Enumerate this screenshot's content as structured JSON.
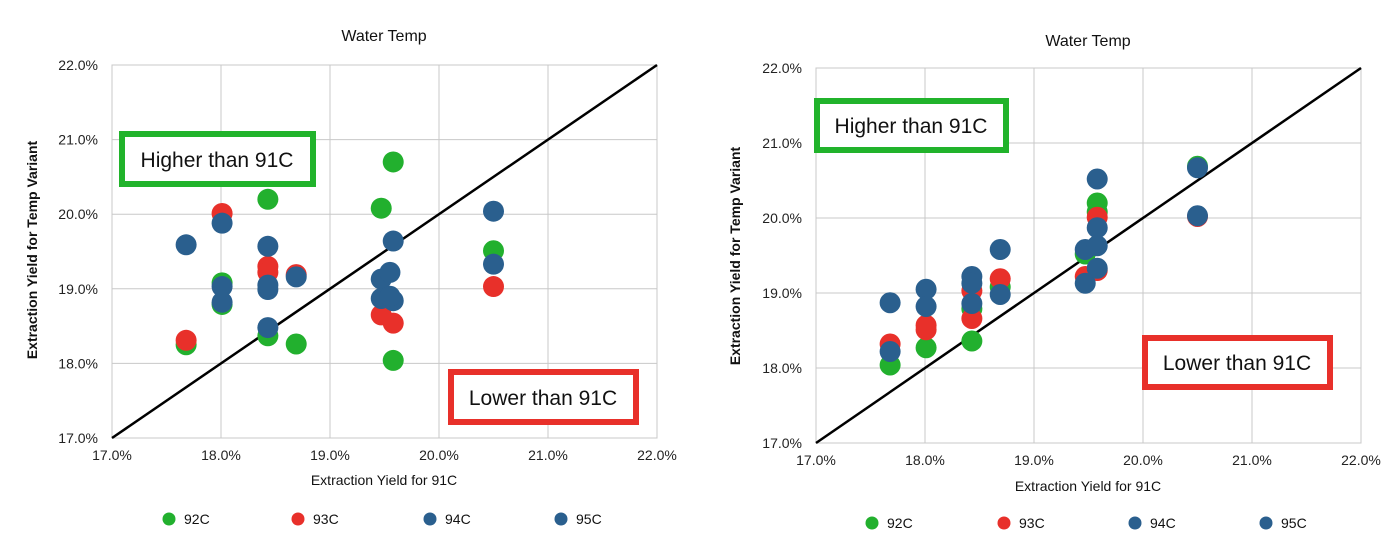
{
  "colors": {
    "92C": "#22b02e",
    "93C": "#e8302a",
    "94C": "#2a5f8e",
    "95C": "#2a5f8e",
    "higher_box": "#21b32b",
    "lower_box": "#e8302a",
    "grid": "#c8c8c8",
    "diagonal": "#000000"
  },
  "chart_data": [
    {
      "type": "scatter",
      "title": "Water Temp",
      "xlabel": "Extraction Yield for 91C",
      "ylabel": "Extraction Yield for Temp  Variant",
      "xlim": [
        17.0,
        22.0
      ],
      "ylim": [
        17.0,
        22.0
      ],
      "xticks": [
        17,
        18,
        19,
        20,
        21,
        22
      ],
      "yticks": [
        17,
        18,
        19,
        20,
        21,
        22
      ],
      "x_tick_labels": [
        "17.0%",
        "18.0%",
        "19.0%",
        "20.0%",
        "21.0%",
        "22.0%"
      ],
      "y_tick_labels": [
        "17.0%",
        "18.0%",
        "19.0%",
        "20.0%",
        "21.0%",
        "22.0%"
      ],
      "grid": true,
      "legend_position": "bottom",
      "reference_line": "y = x",
      "annotations": [
        "Higher than 91C",
        "Lower than 91C"
      ],
      "series": [
        {
          "name": "92C",
          "points": [
            [
              17.68,
              18.25
            ],
            [
              18.01,
              19.08
            ],
            [
              18.01,
              18.79
            ],
            [
              18.43,
              20.2
            ],
            [
              18.43,
              18.37
            ],
            [
              18.69,
              18.26
            ],
            [
              19.47,
              20.08
            ],
            [
              19.58,
              20.7
            ],
            [
              19.58,
              18.04
            ],
            [
              20.5,
              19.51
            ]
          ]
        },
        {
          "name": "93C",
          "points": [
            [
              17.68,
              18.31
            ],
            [
              18.01,
              20.01
            ],
            [
              18.43,
              19.3
            ],
            [
              18.43,
              19.22
            ],
            [
              18.69,
              19.19
            ],
            [
              19.47,
              18.65
            ],
            [
              19.58,
              18.54
            ],
            [
              20.5,
              19.03
            ]
          ]
        },
        {
          "name": "94C",
          "points": [
            [
              17.68,
              19.59
            ],
            [
              18.01,
              19.88
            ],
            [
              18.01,
              18.82
            ],
            [
              18.43,
              19.57
            ],
            [
              18.43,
              18.99
            ],
            [
              18.43,
              18.48
            ],
            [
              18.69,
              19.16
            ],
            [
              19.47,
              19.13
            ],
            [
              19.47,
              18.87
            ],
            [
              19.58,
              19.64
            ],
            [
              19.58,
              18.84
            ],
            [
              20.5,
              20.04
            ]
          ]
        },
        {
          "name": "95C",
          "points": [
            [
              18.01,
              19.03
            ],
            [
              18.43,
              19.05
            ],
            [
              19.55,
              19.22
            ],
            [
              19.55,
              18.9
            ],
            [
              20.5,
              19.33
            ]
          ]
        }
      ]
    },
    {
      "type": "scatter",
      "title": "Water Temp",
      "xlabel": "Extraction Yield for 91C",
      "ylabel": "Extraction Yield for Temp  Variant",
      "xlim": [
        17.0,
        22.0
      ],
      "ylim": [
        17.0,
        22.0
      ],
      "xticks": [
        17,
        18,
        19,
        20,
        21,
        22
      ],
      "yticks": [
        17,
        18,
        19,
        20,
        21,
        22
      ],
      "x_tick_labels": [
        "17.0%",
        "18.0%",
        "19.0%",
        "20.0%",
        "21.0%",
        "22.0%"
      ],
      "y_tick_labels": [
        "17.0%",
        "18.0%",
        "19.0%",
        "20.0%",
        "21.0%",
        "22.0%"
      ],
      "grid": true,
      "legend_position": "bottom",
      "reference_line": "y = x",
      "annotations": [
        "Higher than 91C",
        "Lower than 91C"
      ],
      "series": [
        {
          "name": "92C",
          "points": [
            [
              17.68,
              18.04
            ],
            [
              18.01,
              18.27
            ],
            [
              18.43,
              18.36
            ],
            [
              18.43,
              18.79
            ],
            [
              18.69,
              19.08
            ],
            [
              19.47,
              19.52
            ],
            [
              19.58,
              20.08
            ],
            [
              19.58,
              20.2
            ],
            [
              20.5,
              20.69
            ]
          ]
        },
        {
          "name": "93C",
          "points": [
            [
              17.68,
              18.32
            ],
            [
              18.01,
              18.51
            ],
            [
              18.01,
              18.57
            ],
            [
              18.43,
              18.66
            ],
            [
              18.43,
              19.03
            ],
            [
              18.69,
              19.19
            ],
            [
              19.47,
              19.22
            ],
            [
              19.58,
              19.3
            ],
            [
              19.58,
              20.01
            ],
            [
              20.5,
              20.02
            ]
          ]
        },
        {
          "name": "94C",
          "points": [
            [
              17.68,
              18.87
            ],
            [
              18.01,
              19.05
            ],
            [
              18.01,
              18.82
            ],
            [
              18.43,
              19.22
            ],
            [
              18.43,
              18.86
            ],
            [
              18.69,
              19.58
            ],
            [
              18.69,
              18.98
            ],
            [
              19.47,
              19.58
            ],
            [
              19.47,
              19.13
            ],
            [
              19.58,
              20.52
            ],
            [
              19.58,
              19.87
            ],
            [
              20.5,
              20.67
            ]
          ]
        },
        {
          "name": "95C",
          "points": [
            [
              17.68,
              18.22
            ],
            [
              18.43,
              19.13
            ],
            [
              19.58,
              19.63
            ],
            [
              19.58,
              19.33
            ],
            [
              20.5,
              20.03
            ]
          ]
        }
      ]
    }
  ]
}
